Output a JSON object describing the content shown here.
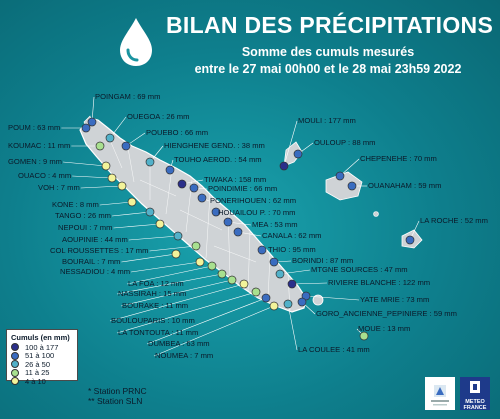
{
  "header": {
    "title": "BILAN DES PRÉCIPITATIONS",
    "subtitle_line1": "Somme des cumuls mesurés",
    "subtitle_line2": "entre le 27 mai 00h00 et le 28 mai 23h59 2022"
  },
  "legend": {
    "title": "Cumuls (en mm)",
    "classes": [
      {
        "label": "100 à 177",
        "color": "#2b2f8a"
      },
      {
        "label": "51 à 100",
        "color": "#3a6cc0"
      },
      {
        "label": "26 à 50",
        "color": "#52b1c9"
      },
      {
        "label": "11 à 25",
        "color": "#a8e08f"
      },
      {
        "label": "4 à 10",
        "color": "#f2f39a"
      }
    ]
  },
  "notes": {
    "prnc": "* Station PRNC",
    "sln": "** Station SLN"
  },
  "logos": {
    "meteo_france": "METEO FRANCE"
  },
  "stations": [
    {
      "name": "POINGAM",
      "value": 69,
      "label": "POINGAM : 69 mm",
      "class": 1
    },
    {
      "name": "POUM",
      "value": 63,
      "label": "POUM : 63 mm",
      "class": 1
    },
    {
      "name": "KOUMAC",
      "value": 11,
      "label": "KOUMAC : 11 mm",
      "class": 3
    },
    {
      "name": "GOMEN",
      "value": 9,
      "label": "GOMEN : 9 mm",
      "class": 4
    },
    {
      "name": "OUACO",
      "value": 4,
      "label": "OUACO : 4 mm",
      "class": 4
    },
    {
      "name": "VOH",
      "value": 7,
      "label": "VOH : 7 mm",
      "class": 4
    },
    {
      "name": "KONE",
      "value": 8,
      "label": "KONE : 8 mm",
      "class": 4
    },
    {
      "name": "TANGO",
      "value": 26,
      "label": "TANGO : 26 mm",
      "class": 2
    },
    {
      "name": "NEPOUI",
      "value": 7,
      "label": "NEPOUI : 7 mm",
      "class": 4
    },
    {
      "name": "AOUPINIE",
      "value": 44,
      "label": "AOUPINIE : 44 mm",
      "class": 2
    },
    {
      "name": "COL ROUSSETTES",
      "value": 17,
      "label": "COL ROUSSETTES : 17 mm",
      "class": 3
    },
    {
      "name": "BOURAIL",
      "value": 7,
      "label": "BOURAIL : 7 mm",
      "class": 4
    },
    {
      "name": "NESSADIOU",
      "value": 4,
      "label": "NESSADIOU : 4 mm",
      "class": 4
    },
    {
      "name": "LA FOA",
      "value": 12,
      "label": "LA FOA : 12 mm",
      "class": 3
    },
    {
      "name": "NASSIRAH",
      "value": 15,
      "label": "NASSIRAH : 15 mm",
      "class": 3
    },
    {
      "name": "BOURAKE",
      "value": 11,
      "label": "BOURAKE : 11 mm",
      "class": 3
    },
    {
      "name": "BOULOUPARIS",
      "value": 10,
      "label": "BOULOUPARIS : 10 mm",
      "class": 4
    },
    {
      "name": "LA TONTOUTA",
      "value": 11,
      "label": "LA TONTOUTA : 11 mm",
      "class": 3
    },
    {
      "name": "DUMBEA",
      "value": 63,
      "label": "DUMBEA : 63 mm",
      "class": 1
    },
    {
      "name": "NOUMEA",
      "value": 7,
      "label": "NOUMEA : 7 mm",
      "class": 4
    },
    {
      "name": "LA COULEE",
      "value": 41,
      "label": "LA COULEE : 41 mm",
      "class": 2
    },
    {
      "name": "OUEGOA",
      "value": 26,
      "label": "OUEGOA : 26 mm",
      "class": 2
    },
    {
      "name": "POUEBO",
      "value": 66,
      "label": "POUEBO : 66 mm",
      "class": 1
    },
    {
      "name": "HIENGHENE GEND.",
      "value": 38,
      "label": "HIENGHENE GEND. : 38 mm",
      "class": 2
    },
    {
      "name": "TOUHO AEROD.",
      "value": 54,
      "label": "TOUHO AEROD. : 54 mm",
      "class": 1
    },
    {
      "name": "TIWAKA",
      "value": 158,
      "label": "TIWAKA : 158 mm",
      "class": 0
    },
    {
      "name": "POINDIMIE",
      "value": 66,
      "label": "POINDIMIE : 66 mm",
      "class": 1
    },
    {
      "name": "PONERIHOUEN",
      "value": 62,
      "label": "PONERIHOUEN : 62 mm",
      "class": 1
    },
    {
      "name": "HOUAILOU P.",
      "value": 70,
      "label": "HOUAILOU P. : 70 mm",
      "class": 1
    },
    {
      "name": "MEA",
      "value": 53,
      "label": "MEA : 53 mm",
      "class": 1
    },
    {
      "name": "CANALA",
      "value": 62,
      "label": "CANALA : 62 mm",
      "class": 1
    },
    {
      "name": "THIO",
      "value": 95,
      "label": "THIO : 95 mm",
      "class": 1
    },
    {
      "name": "BORINDI",
      "value": 87,
      "label": "BORINDI : 87 mm",
      "class": 1
    },
    {
      "name": "MTGNE SOURCES",
      "value": 47,
      "label": "MTGNE SOURCES : 47 mm",
      "class": 2
    },
    {
      "name": "RIVIERE BLANCHE",
      "value": 122,
      "label": "RIVIERE BLANCHE : 122 mm",
      "class": 0
    },
    {
      "name": "YATE MRIE",
      "value": 73,
      "label": "YATE MRIE : 73 mm",
      "class": 1
    },
    {
      "name": "GORO_ANCIENNE_PEPINIERE",
      "value": 59,
      "label": "GORO_ANCIENNE_PEPINIERE : 59 mm",
      "class": 1
    },
    {
      "name": "MOUE",
      "value": 13,
      "label": "MOUE : 13 mm",
      "class": 3
    },
    {
      "name": "MOULI",
      "value": 177,
      "label": "MOULI : 177 mm",
      "class": 0
    },
    {
      "name": "OULOUP",
      "value": 88,
      "label": "OULOUP : 88 mm",
      "class": 1
    },
    {
      "name": "CHEPENEHE",
      "value": 70,
      "label": "CHEPENEHE : 70 mm",
      "class": 1
    },
    {
      "name": "OUANAHAM",
      "value": 59,
      "label": "OUANAHAM : 59 mm",
      "class": 1
    },
    {
      "name": "LA ROCHE",
      "value": 52,
      "label": "LA ROCHE : 52 mm",
      "class": 1
    }
  ]
}
